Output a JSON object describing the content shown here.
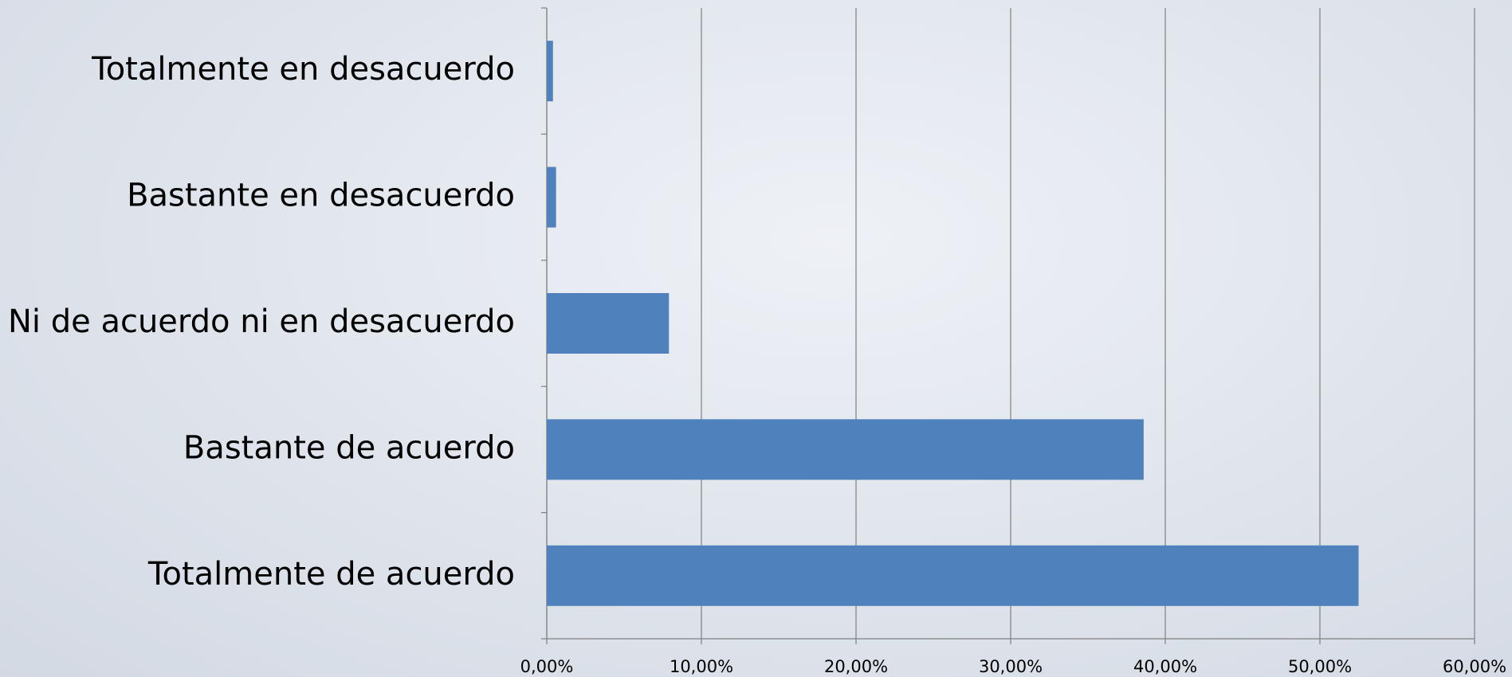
{
  "chart_data": {
    "type": "bar",
    "orientation": "horizontal",
    "categories": [
      "Totalmente en desacuerdo",
      "Bastante en desacuerdo",
      "Ni de acuerdo ni en desacuerdo",
      "Bastante de acuerdo",
      "Totalmente de acuerdo"
    ],
    "values": [
      0.4,
      0.6,
      7.9,
      38.6,
      52.5
    ],
    "color": "#4f81bd",
    "xlim": [
      0,
      60
    ],
    "xticks": [
      {
        "value": 0,
        "label": "0,00%"
      },
      {
        "value": 10,
        "label": "10,00%"
      },
      {
        "value": 20,
        "label": "20,00%"
      },
      {
        "value": 30,
        "label": "30,00%"
      },
      {
        "value": 40,
        "label": "40,00%"
      },
      {
        "value": 50,
        "label": "50,00%"
      },
      {
        "value": 60,
        "label": "60,00%"
      }
    ],
    "grid": true
  }
}
